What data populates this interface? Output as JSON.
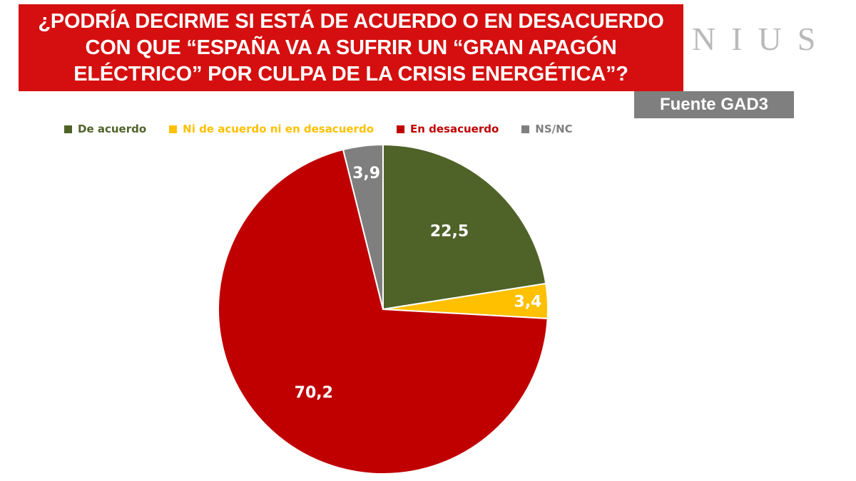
{
  "title": {
    "line1": "¿PODRÍA DECIRME SI ESTÁ DE ACUERDO O EN DESACUERDO",
    "line2": "CON QUE “ESPAÑA VA A SUFRIR UN “GRAN APAGÓN",
    "line3": "ELÉCTRICO” POR CULPA DE LA CRISIS ENERGÉTICA”?",
    "background_color": "#d50f0f",
    "text_color": "#ffffff"
  },
  "brand": {
    "text": "NIUS",
    "color": "#b9b9b9"
  },
  "source": {
    "label": "Fuente GAD3",
    "background_color": "#7f7f7f"
  },
  "chart_data": {
    "type": "pie",
    "title": "",
    "start_angle": "12 o'clock",
    "direction": "clockwise",
    "legend_position": "top",
    "slices": [
      {
        "label": "De acuerdo",
        "value": 22.5,
        "value_text": "22,5",
        "color": "#4f6228",
        "legend_text_color": "#4f6228"
      },
      {
        "label": "Ni de acuerdo ni en desacuerdo",
        "value": 3.4,
        "value_text": "3,4",
        "color": "#ffc000",
        "legend_text_color": "#ffc000"
      },
      {
        "label": "En desacuerdo",
        "value": 70.2,
        "value_text": "70,2",
        "color": "#c00000",
        "legend_text_color": "#c00000"
      },
      {
        "label": "NS/NC",
        "value": 3.9,
        "value_text": "3,9",
        "color": "#7f7f7f",
        "legend_text_color": "#7f7f7f"
      }
    ]
  }
}
